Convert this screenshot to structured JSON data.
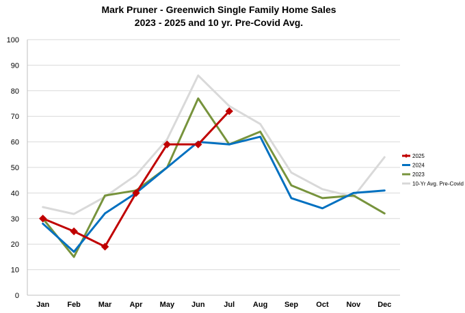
{
  "chart_data": {
    "type": "line",
    "title_lines": [
      "Mark Pruner - Greenwich Single Family Home Sales",
      "2023 - 2025 and 10 yr. Pre-Covid Avg."
    ],
    "categories": [
      "Jan",
      "Feb",
      "Mar",
      "Apr",
      "May",
      "Jun",
      "Jul",
      "Aug",
      "Sep",
      "Oct",
      "Nov",
      "Dec"
    ],
    "ylim": [
      0,
      100
    ],
    "yticks": [
      0,
      10,
      20,
      30,
      40,
      50,
      60,
      70,
      80,
      90,
      100
    ],
    "grid": true,
    "legend_position": "right",
    "series": [
      {
        "name": "10-Yr Avg. Pre-Covid",
        "color": "#d9d9d9",
        "marker": "none",
        "values": [
          34.5,
          31.8,
          38.5,
          47.0,
          61.0,
          86.0,
          74.0,
          67.0,
          48.0,
          41.5,
          38.5,
          54.0
        ]
      },
      {
        "name": "2023",
        "color": "#77933c",
        "marker": "none",
        "values": [
          30,
          15,
          39,
          41,
          50,
          77,
          59,
          64,
          43,
          38,
          39,
          32
        ]
      },
      {
        "name": "2024",
        "color": "#0070c0",
        "marker": "none",
        "values": [
          28,
          17,
          32,
          40,
          50,
          60,
          59,
          62,
          38,
          34,
          40,
          41
        ]
      },
      {
        "name": "2025",
        "color": "#c00000",
        "marker": "diamond",
        "values": [
          30,
          25,
          19,
          40,
          59,
          59,
          72,
          null,
          null,
          null,
          null,
          null
        ]
      }
    ],
    "legend_order": [
      "2025",
      "2024",
      "2023",
      "10-Yr Avg. Pre-Covid"
    ]
  }
}
